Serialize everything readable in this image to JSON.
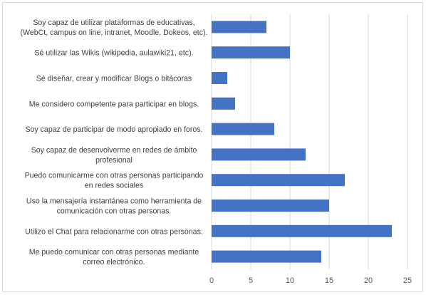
{
  "chart_data": {
    "type": "bar",
    "orientation": "horizontal",
    "categories": [
      [
        "Soy capaz de utilizar plataformas de educativas,",
        "(WebCt, campus on line, intranet, Moodle, Dokeos, etc)."
      ],
      [
        "Sé utilizar las Wikis (wikipedia, aulawiki21, etc)."
      ],
      [
        "Sé diseñar, crear y modificar Blogs o bitácoras"
      ],
      [
        "Me considero competente para participar en blogs."
      ],
      [
        "Soy capaz de participar de modo apropiado en foros."
      ],
      [
        "Soy capaz de desenvolverme en redes de ámbito",
        "profesional"
      ],
      [
        "Puedo comunicarme con otras personas participando",
        "en redes sociales"
      ],
      [
        "Uso la mensajería instantánea como herramienta de",
        "comunicación con otras personas."
      ],
      [
        "Utilizo el Chat para relacionarme con otras personas."
      ],
      [
        "Me puedo comunicar con otras personas mediante",
        "correo electrónico."
      ]
    ],
    "values": [
      7,
      10,
      2,
      3,
      8,
      12,
      17,
      15,
      23,
      14
    ],
    "xlim": [
      0,
      25
    ],
    "xticks": [
      0,
      5,
      10,
      15,
      20,
      25
    ],
    "grid": true,
    "legend": "none",
    "bar_color": "#4472C4",
    "grid_color": "#d9d9d9"
  }
}
